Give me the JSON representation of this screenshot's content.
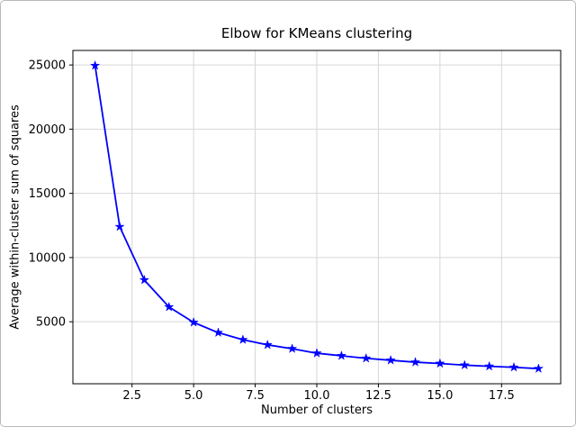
{
  "figure": {
    "background": "#ffffff",
    "border_color": "#b9b9b9"
  },
  "chart_data": {
    "type": "line",
    "title": "Elbow for KMeans clustering",
    "xlabel": "Number of clusters",
    "ylabel": "Average within-cluster sum of squares",
    "x": [
      1,
      2,
      3,
      4,
      5,
      6,
      7,
      8,
      9,
      10,
      11,
      12,
      13,
      14,
      15,
      16,
      17,
      18,
      19
    ],
    "y": [
      24950,
      12400,
      8250,
      6150,
      4950,
      4150,
      3600,
      3200,
      2900,
      2550,
      2350,
      2150,
      2000,
      1850,
      1750,
      1620,
      1530,
      1450,
      1350
    ],
    "xlim": [
      0.1,
      19.9
    ],
    "ylim": [
      170,
      26130
    ],
    "xticks": [
      2.5,
      5.0,
      7.5,
      10.0,
      12.5,
      15.0,
      17.5
    ],
    "xtick_labels": [
      "2.5",
      "5.0",
      "7.5",
      "10.0",
      "12.5",
      "15.0",
      "17.5"
    ],
    "yticks": [
      5000,
      10000,
      15000,
      20000,
      25000
    ],
    "ytick_labels": [
      "5000",
      "10000",
      "15000",
      "20000",
      "25000"
    ],
    "line_color": "#0000ff",
    "marker": "star",
    "marker_color": "#0000ff",
    "grid": true,
    "grid_color": "#d6d6d6",
    "spine_color": "#000000",
    "tick_color": "#000000",
    "legend": "none"
  }
}
